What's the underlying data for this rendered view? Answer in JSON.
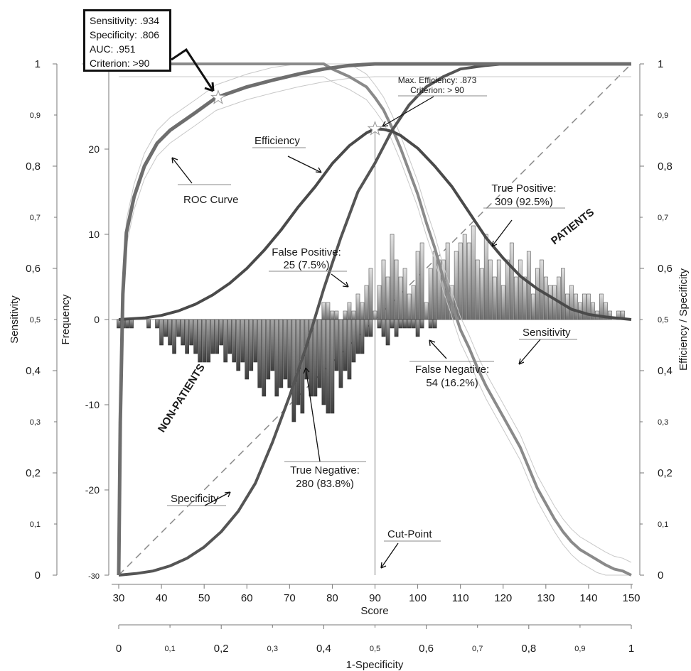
{
  "chart_data": {
    "type": "bar",
    "xlabel": "Score",
    "xlim": [
      30,
      150
    ],
    "x_ticks": [
      "30",
      "40",
      "50",
      "60",
      "70",
      "80",
      "90",
      "100",
      "110",
      "120",
      "130",
      "140",
      "150"
    ],
    "x2label": "1-Specificity",
    "x2_ticks_major": [
      "0",
      "0,2",
      "0,4",
      "0,6",
      "0,8",
      "1"
    ],
    "x2_ticks_minor": [
      "0,1",
      "0,3",
      "0,5",
      "0,7",
      "0,9"
    ],
    "y_left_outer_label": "Sensitivity",
    "y_left_outer_major": [
      "0",
      "0,2",
      "0,4",
      "0,6",
      "0,8",
      "1"
    ],
    "y_left_outer_minor": [
      "0,1",
      "0,3",
      "0,5",
      "0,7",
      "0,9"
    ],
    "y_left_inner_label": "Frequency",
    "y_left_inner_ticks": [
      "-30",
      "-20",
      "-10",
      "0",
      "10",
      "20"
    ],
    "ylim_frequency": [
      -30,
      30
    ],
    "y_right_label": "Efficiency / Specificity",
    "y_right_major": [
      "0",
      "0,2",
      "0,4",
      "0,6",
      "0,8",
      "1"
    ],
    "y_right_minor": [
      "0,1",
      "0,3",
      "0,5",
      "0,7",
      "0,9"
    ],
    "cut_point": 90,
    "patients_x": [
      78,
      79,
      80,
      81,
      82,
      83,
      84,
      85,
      86,
      87,
      88,
      89,
      90,
      91,
      92,
      93,
      94,
      95,
      96,
      97,
      98,
      99,
      100,
      101,
      102,
      103,
      104,
      105,
      106,
      107,
      108,
      109,
      110,
      111,
      112,
      113,
      114,
      115,
      116,
      117,
      118,
      119,
      120,
      121,
      122,
      123,
      124,
      125,
      126,
      127,
      128,
      129,
      130,
      131,
      132,
      133,
      134,
      135,
      136,
      137,
      138,
      139,
      140,
      141,
      142,
      143,
      144,
      145,
      146,
      147,
      148,
      149
    ],
    "patients_counts": [
      2,
      2,
      1,
      1,
      0,
      1,
      2,
      1,
      3,
      2,
      4,
      6,
      1,
      4,
      7,
      5,
      10,
      7,
      5,
      6,
      3,
      4,
      8,
      9,
      2,
      6,
      8,
      7,
      7,
      9,
      4,
      8,
      9,
      10,
      9,
      11,
      7,
      6,
      10,
      7,
      5,
      7,
      4,
      7,
      9,
      5,
      7,
      5,
      8,
      3,
      6,
      7,
      5,
      4,
      4,
      5,
      6,
      3,
      4,
      3,
      2,
      3,
      3,
      2,
      1,
      3,
      2,
      1,
      0,
      1,
      1,
      0
    ],
    "nonpatients_x": [
      30,
      31,
      32,
      33,
      34,
      35,
      36,
      37,
      38,
      39,
      40,
      41,
      42,
      43,
      44,
      45,
      46,
      47,
      48,
      49,
      50,
      51,
      52,
      53,
      54,
      55,
      56,
      57,
      58,
      59,
      60,
      61,
      62,
      63,
      64,
      65,
      66,
      67,
      68,
      69,
      70,
      71,
      72,
      73,
      74,
      75,
      76,
      77,
      78,
      79,
      80,
      81,
      82,
      83,
      84,
      85,
      86,
      87,
      88,
      89,
      90,
      91,
      92,
      93,
      94,
      95,
      96,
      97,
      98,
      99,
      100,
      101,
      102,
      103,
      104
    ],
    "nonpatients_counts": [
      1,
      1,
      1,
      1,
      0,
      0,
      0,
      1,
      0,
      1,
      3,
      2,
      3,
      4,
      2,
      3,
      4,
      3,
      4,
      5,
      5,
      5,
      4,
      4,
      3,
      5,
      4,
      5,
      6,
      5,
      7,
      6,
      5,
      8,
      9,
      7,
      6,
      9,
      8,
      7,
      8,
      12,
      10,
      11,
      7,
      9,
      9,
      8,
      10,
      11,
      11,
      6,
      8,
      6,
      7,
      5,
      4,
      4,
      2,
      2,
      0,
      1,
      2,
      3,
      1,
      2,
      1,
      1,
      1,
      1,
      2,
      1,
      0,
      1,
      1
    ],
    "curves": {
      "sensitivity": [
        [
          30,
          1
        ],
        [
          78,
          1
        ],
        [
          80,
          0.99
        ],
        [
          84,
          0.975
        ],
        [
          86,
          0.965
        ],
        [
          88,
          0.955
        ],
        [
          90,
          0.934
        ],
        [
          92,
          0.91
        ],
        [
          94,
          0.875
        ],
        [
          96,
          0.835
        ],
        [
          98,
          0.79
        ],
        [
          100,
          0.745
        ],
        [
          102,
          0.69
        ],
        [
          104,
          0.64
        ],
        [
          106,
          0.58
        ],
        [
          108,
          0.53
        ],
        [
          110,
          0.48
        ],
        [
          112,
          0.445
        ],
        [
          114,
          0.405
        ],
        [
          116,
          0.37
        ],
        [
          118,
          0.34
        ],
        [
          120,
          0.31
        ],
        [
          122,
          0.28
        ],
        [
          124,
          0.25
        ],
        [
          126,
          0.21
        ],
        [
          128,
          0.17
        ],
        [
          130,
          0.14
        ],
        [
          132,
          0.11
        ],
        [
          134,
          0.085
        ],
        [
          136,
          0.065
        ],
        [
          138,
          0.05
        ],
        [
          140,
          0.04
        ],
        [
          142,
          0.03
        ],
        [
          144,
          0.02
        ],
        [
          146,
          0.012
        ],
        [
          148,
          0.008
        ],
        [
          150,
          0
        ]
      ],
      "specificity": [
        [
          30,
          0
        ],
        [
          34,
          0.003
        ],
        [
          38,
          0.008
        ],
        [
          42,
          0.018
        ],
        [
          46,
          0.033
        ],
        [
          50,
          0.055
        ],
        [
          54,
          0.085
        ],
        [
          58,
          0.125
        ],
        [
          62,
          0.18
        ],
        [
          66,
          0.26
        ],
        [
          70,
          0.35
        ],
        [
          74,
          0.45
        ],
        [
          78,
          0.56
        ],
        [
          82,
          0.66
        ],
        [
          86,
          0.75
        ],
        [
          90,
          0.806
        ],
        [
          94,
          0.87
        ],
        [
          98,
          0.92
        ],
        [
          102,
          0.955
        ],
        [
          106,
          0.975
        ],
        [
          110,
          0.99
        ],
        [
          116,
          0.997
        ],
        [
          120,
          1
        ],
        [
          150,
          1
        ]
      ],
      "efficiency": [
        [
          30,
          0.5
        ],
        [
          36,
          0.503
        ],
        [
          40,
          0.508
        ],
        [
          44,
          0.517
        ],
        [
          48,
          0.53
        ],
        [
          52,
          0.548
        ],
        [
          56,
          0.571
        ],
        [
          60,
          0.6
        ],
        [
          64,
          0.635
        ],
        [
          68,
          0.675
        ],
        [
          72,
          0.72
        ],
        [
          76,
          0.76
        ],
        [
          80,
          0.805
        ],
        [
          84,
          0.84
        ],
        [
          88,
          0.865
        ],
        [
          90,
          0.873
        ],
        [
          92,
          0.872
        ],
        [
          94,
          0.868
        ],
        [
          96,
          0.86
        ],
        [
          100,
          0.835
        ],
        [
          104,
          0.8
        ],
        [
          108,
          0.76
        ],
        [
          112,
          0.71
        ],
        [
          116,
          0.66
        ],
        [
          120,
          0.62
        ],
        [
          124,
          0.585
        ],
        [
          128,
          0.56
        ],
        [
          132,
          0.54
        ],
        [
          136,
          0.52
        ],
        [
          140,
          0.51
        ],
        [
          144,
          0.505
        ],
        [
          150,
          0.5
        ]
      ],
      "roc": [
        [
          0,
          0
        ],
        [
          0.003,
          0.3
        ],
        [
          0.008,
          0.55
        ],
        [
          0.015,
          0.67
        ],
        [
          0.03,
          0.74
        ],
        [
          0.05,
          0.8
        ],
        [
          0.075,
          0.845
        ],
        [
          0.1,
          0.87
        ],
        [
          0.15,
          0.905
        ],
        [
          0.19,
          0.934
        ],
        [
          0.25,
          0.955
        ],
        [
          0.3,
          0.968
        ],
        [
          0.35,
          0.98
        ],
        [
          0.4,
          0.99
        ],
        [
          0.45,
          0.997
        ],
        [
          0.5,
          1
        ],
        [
          1,
          1
        ]
      ]
    },
    "labels": {
      "roc": "ROC Curve",
      "efficiency": "Efficiency",
      "specificity": "Specificity",
      "sensitivity": "Sensitivity",
      "patients": "PATIENTS",
      "nonpatients": "NON-PATIENTS",
      "cut_point": "Cut-Point",
      "max_eff_1": "Max. Efficiency: .873",
      "max_eff_2": "Criterion: > 90",
      "tp_1": "True Positive:",
      "tp_2": "309 (92.5%)",
      "fp_1": "False Positive:",
      "fp_2": "25 (7.5%)",
      "fn_1": "False Negative:",
      "fn_2": "54 (16.2%)",
      "tn_1": "True Negative:",
      "tn_2": "280 (83.8%)"
    },
    "annotation_box": [
      "Sensitivity: .934",
      "Specificity: .806",
      "AUC: .951",
      "Criterion: >90"
    ],
    "colors": {
      "sensitivity": "#8a8a8a",
      "specificity": "#555555",
      "efficiency": "#4a4a4a",
      "roc": "#6e6e6e",
      "bar_light": "#d8d8d8",
      "bar_dark": "#5a5a5a",
      "diagonal": "#8a8a8a"
    }
  }
}
